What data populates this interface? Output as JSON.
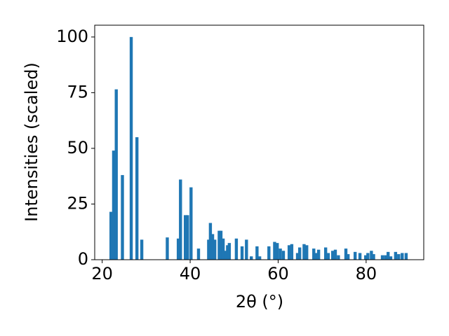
{
  "chart_data": {
    "type": "bar",
    "x": [
      22.0,
      22.6,
      23.2,
      24.6,
      26.6,
      27.9,
      29.0,
      34.8,
      37.3,
      37.8,
      38.9,
      39.4,
      40.2,
      41.9,
      44.2,
      44.6,
      45.1,
      45.6,
      46.6,
      47.0,
      47.5,
      48.0,
      48.5,
      48.9,
      50.5,
      51.8,
      52.8,
      53.9,
      55.2,
      55.8,
      57.9,
      59.2,
      59.8,
      60.5,
      61.2,
      62.5,
      63.1,
      64.4,
      64.9,
      65.9,
      66.5,
      68.1,
      68.6,
      69.2,
      70.8,
      71.4,
      72.4,
      73.0,
      73.7,
      75.4,
      75.9,
      77.5,
      78.6,
      79.9,
      80.4,
      81.2,
      81.7,
      83.7,
      84.4,
      85.0,
      85.6,
      86.7,
      87.4,
      88.2,
      89.1
    ],
    "values": [
      21.5,
      49,
      76.5,
      38,
      100,
      55,
      9,
      10,
      9.5,
      36,
      20,
      20,
      32.5,
      5,
      9,
      16.5,
      11.5,
      9,
      13,
      13,
      9.5,
      4,
      6.5,
      7.5,
      9.5,
      6,
      9,
      1.5,
      6,
      1.5,
      6,
      8,
      7.5,
      5,
      4,
      6.5,
      7,
      3,
      5.5,
      7,
      6.5,
      5,
      3,
      4.5,
      5.5,
      3,
      4,
      4.5,
      2,
      5,
      2.5,
      3.5,
      3,
      2,
      3,
      4,
      2.5,
      2,
      2,
      3.5,
      1.5,
      3.5,
      2.5,
      3,
      3
    ],
    "color": "#1f77b4",
    "xlabel": "2θ (°)",
    "ylabel": "Intensities (scaled)",
    "xlim": [
      18.3,
      93.1
    ],
    "ylim": [
      0,
      105.3
    ],
    "xticks": [
      20,
      40,
      60,
      80
    ],
    "yticks": [
      0,
      25,
      50,
      75,
      100
    ]
  }
}
